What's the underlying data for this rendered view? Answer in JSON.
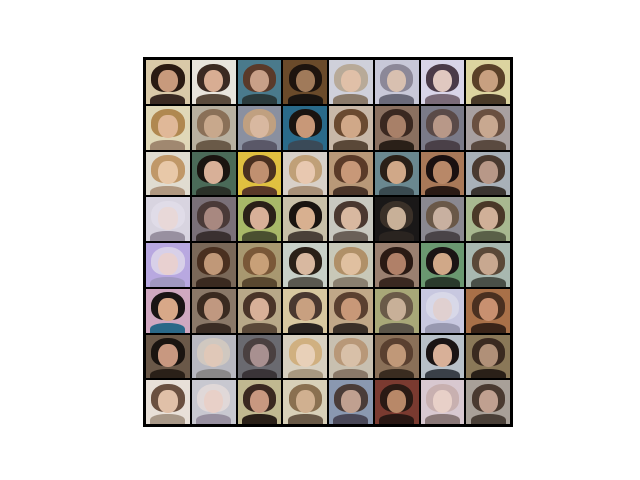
{
  "image": {
    "description_free": true,
    "grid_rows": 8,
    "grid_cols": 8,
    "tiles": [
      {
        "bg": "#d9c9a8",
        "hair": "#2a1a12",
        "skin": "#c89a7c",
        "body": "#3a2a22"
      },
      {
        "bg": "#e8e4dc",
        "hair": "#3b2a22",
        "skin": "#d8ad93",
        "body": "#5a4a3c"
      },
      {
        "bg": "#4a7a8c",
        "hair": "#5a3a2a",
        "skin": "#c8a088",
        "body": "#2a3a3c"
      },
      {
        "bg": "#6a4a2a",
        "hair": "#1e140e",
        "skin": "#a07a5a",
        "body": "#1a1410"
      },
      {
        "bg": "#cfd0da",
        "hair": "#b8aa98",
        "skin": "#e0c0a8",
        "body": "#8a7a6a"
      },
      {
        "bg": "#c8c8d8",
        "hair": "#8c8898",
        "skin": "#d8c0b0",
        "body": "#6a6a7a"
      },
      {
        "bg": "#d8d4e8",
        "hair": "#4a3a48",
        "skin": "#e0c8c0",
        "body": "#7a6a78"
      },
      {
        "bg": "#dcd4a0",
        "hair": "#5a4028",
        "skin": "#c8a080",
        "body": "#4a3a28"
      },
      {
        "bg": "#e0d8b8",
        "hair": "#b08850",
        "skin": "#e0b898",
        "body": "#a08870"
      },
      {
        "bg": "#b8b0a0",
        "hair": "#8a7058",
        "skin": "#c8a88c",
        "body": "#6a5a48"
      },
      {
        "bg": "#8a90a0",
        "hair": "#c0a080",
        "skin": "#d8b8a0",
        "body": "#5a5868"
      },
      {
        "bg": "#2a6a8a",
        "hair": "#1a1410",
        "skin": "#c89878",
        "body": "#3a4a58"
      },
      {
        "bg": "#c8b8a8",
        "hair": "#6a4a30",
        "skin": "#d0a888",
        "body": "#5a4838"
      },
      {
        "bg": "#8a7060",
        "hair": "#3a2820",
        "skin": "#a88068",
        "body": "#2a2018"
      },
      {
        "bg": "#7a7a88",
        "hair": "#5a4a48",
        "skin": "#b89888",
        "body": "#4a4048"
      },
      {
        "bg": "#a8a0a0",
        "hair": "#6a5040",
        "skin": "#c8a890",
        "body": "#5a4a40"
      },
      {
        "bg": "#e0dcd0",
        "hair": "#c09868",
        "skin": "#e8c8a8",
        "body": "#b09880"
      },
      {
        "bg": "#4a6a58",
        "hair": "#1a1410",
        "skin": "#d8b098",
        "body": "#2a3028"
      },
      {
        "bg": "#e0c040",
        "hair": "#4a3020",
        "skin": "#c09070",
        "body": "#5a3828"
      },
      {
        "bg": "#d8d0c8",
        "hair": "#c0a078",
        "skin": "#e8c8b0",
        "body": "#a89078"
      },
      {
        "bg": "#b89878",
        "hair": "#5a3a28",
        "skin": "#c89878",
        "body": "#4a3428"
      },
      {
        "bg": "#6a8890",
        "hair": "#2a2018",
        "skin": "#d0a888",
        "body": "#3a4a50"
      },
      {
        "bg": "#a87858",
        "hair": "#1a1010",
        "skin": "#b88868",
        "body": "#2a1a14"
      },
      {
        "bg": "#a8b0b8",
        "hair": "#4a3a30",
        "skin": "#b89888",
        "body": "#3a3430"
      },
      {
        "bg": "#d8d4e0",
        "hair": "#e0dce8",
        "skin": "#e8d8d8",
        "body": "#9890a0"
      },
      {
        "bg": "#7a7078",
        "hair": "#4a3a38",
        "skin": "#a88880",
        "body": "#3a3030"
      },
      {
        "bg": "#a8b868",
        "hair": "#2a2018",
        "skin": "#d8b098",
        "body": "#4a5030"
      },
      {
        "bg": "#c8c0a8",
        "hair": "#1a1410",
        "skin": "#d8b090",
        "body": "#4a4038"
      },
      {
        "bg": "#c8c8c0",
        "hair": "#4a3830",
        "skin": "#d8b8a0",
        "body": "#6a6058"
      },
      {
        "bg": "#1a1818",
        "hair": "#3a3028",
        "skin": "#c8b098",
        "body": "#2a2420"
      },
      {
        "bg": "#8a8890",
        "hair": "#6a5848",
        "skin": "#c8b0a0",
        "body": "#4a4448"
      },
      {
        "bg": "#a8b890",
        "hair": "#4a3828",
        "skin": "#d0b098",
        "body": "#5a6048"
      },
      {
        "bg": "#b8a8e0",
        "hair": "#d8d0e8",
        "skin": "#e8d0d0",
        "body": "#a098c0"
      },
      {
        "bg": "#7a6858",
        "hair": "#4a3020",
        "skin": "#c09878",
        "body": "#3a2a20"
      },
      {
        "bg": "#a89870",
        "hair": "#7a5838",
        "skin": "#c8a078",
        "body": "#5a4830"
      },
      {
        "bg": "#c8d0c8",
        "hair": "#2a2018",
        "skin": "#d8b8a0",
        "body": "#5a5850"
      },
      {
        "bg": "#c8c8b8",
        "hair": "#b09068",
        "skin": "#e0c0a0",
        "body": "#8a8070"
      },
      {
        "bg": "#9a8070",
        "hair": "#2a1a14",
        "skin": "#b08068",
        "body": "#3a2820"
      },
      {
        "bg": "#6a9870",
        "hair": "#1a1414",
        "skin": "#d0a888",
        "body": "#2a3a2c"
      },
      {
        "bg": "#a8b8b0",
        "hair": "#5a4838",
        "skin": "#c8a890",
        "body": "#4a5048"
      },
      {
        "bg": "#d0a8c0",
        "hair": "#1a1414",
        "skin": "#d8a888",
        "body": "#2a6888"
      },
      {
        "bg": "#8a7868",
        "hair": "#3a2a20",
        "skin": "#c09880",
        "body": "#3a2c24"
      },
      {
        "bg": "#b8a888",
        "hair": "#4a3428",
        "skin": "#d8b098",
        "body": "#5a4838"
      },
      {
        "bg": "#d8c8a0",
        "hair": "#4a3830",
        "skin": "#c8a080",
        "body": "#2a2420"
      },
      {
        "bg": "#c0a888",
        "hair": "#5a4030",
        "skin": "#c89878",
        "body": "#3a3028"
      },
      {
        "bg": "#a8a878",
        "hair": "#6a5a48",
        "skin": "#c8b098",
        "body": "#5a5448"
      },
      {
        "bg": "#c8c8e0",
        "hair": "#d8d8e8",
        "skin": "#e0d0d0",
        "body": "#9898b0"
      },
      {
        "bg": "#a87048",
        "hair": "#4a3020",
        "skin": "#c89070",
        "body": "#3a2418"
      },
      {
        "bg": "#6a5848",
        "hair": "#1a1410",
        "skin": "#c89880",
        "body": "#2a2018"
      },
      {
        "bg": "#b8b8c0",
        "hair": "#d0c8c0",
        "skin": "#e0c8b8",
        "body": "#8a8888"
      },
      {
        "bg": "#6a6a70",
        "hair": "#4a4040",
        "skin": "#a89090",
        "body": "#3a3438"
      },
      {
        "bg": "#d8d0c0",
        "hair": "#d0b080",
        "skin": "#e8d0b8",
        "body": "#a89880"
      },
      {
        "bg": "#c8c0b0",
        "hair": "#b89878",
        "skin": "#d8c0a8",
        "body": "#8a7868"
      },
      {
        "bg": "#8a7058",
        "hair": "#5a4030",
        "skin": "#c09878",
        "body": "#3a2c20"
      },
      {
        "bg": "#b8c0c8",
        "hair": "#1a1414",
        "skin": "#d8b098",
        "body": "#3a4048"
      },
      {
        "bg": "#8a7858",
        "hair": "#3a2a20",
        "skin": "#b09078",
        "body": "#2a2018"
      },
      {
        "bg": "#e8e0d8",
        "hair": "#6a5040",
        "skin": "#e0c0a8",
        "body": "#a89888"
      },
      {
        "bg": "#c8c8d0",
        "hair": "#e0d8d8",
        "skin": "#e8d0c8",
        "body": "#9890a0"
      },
      {
        "bg": "#c0b890",
        "hair": "#3a2820",
        "skin": "#c89880",
        "body": "#2a2018"
      },
      {
        "bg": "#d8d0b8",
        "hair": "#8a7050",
        "skin": "#d0b090",
        "body": "#6a5a48"
      },
      {
        "bg": "#8a98b0",
        "hair": "#4a3c38",
        "skin": "#c0a090",
        "body": "#4a4858"
      },
      {
        "bg": "#7a3a30",
        "hair": "#2a1a14",
        "skin": "#b88868",
        "body": "#2a1814"
      },
      {
        "bg": "#d8c8d0",
        "hair": "#c8b0b0",
        "skin": "#e8d0c8",
        "body": "#8a7878"
      },
      {
        "bg": "#a8a098",
        "hair": "#4a3a30",
        "skin": "#c0a090",
        "body": "#4a4038"
      }
    ]
  }
}
